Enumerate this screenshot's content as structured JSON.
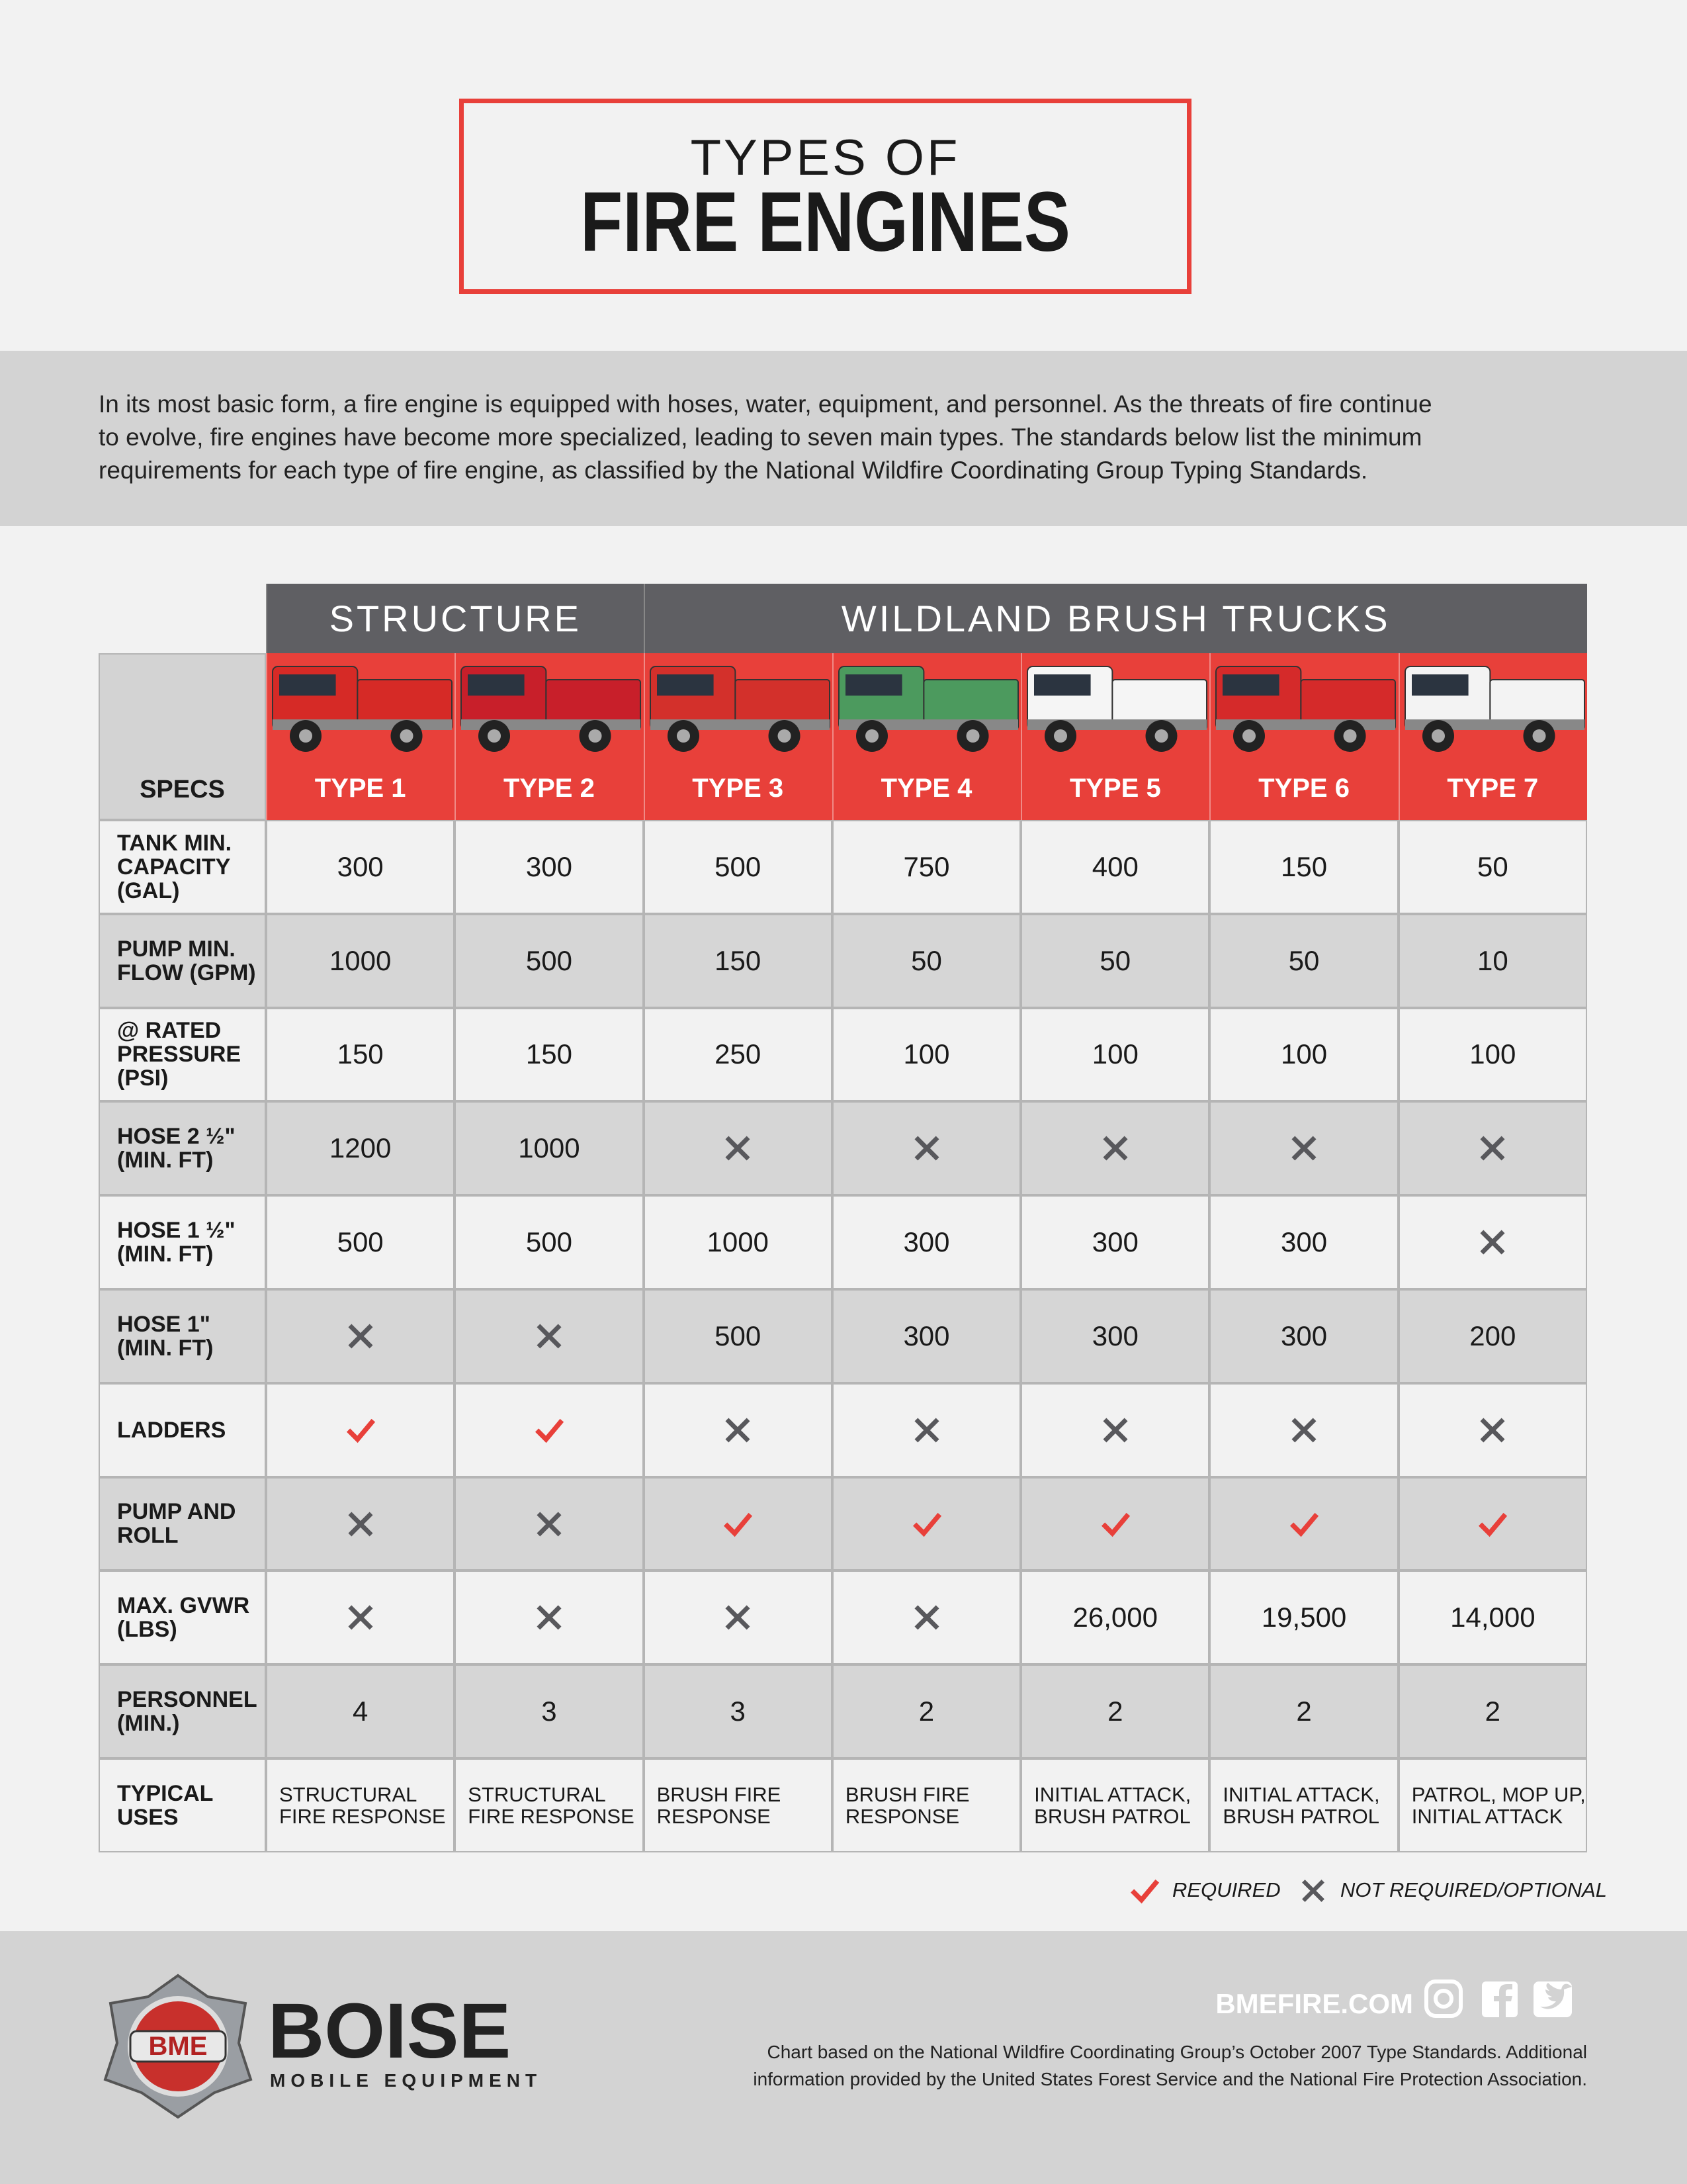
{
  "header": {
    "title_top": "TYPES OF",
    "title_main": "FIRE ENGINES"
  },
  "intro": [
    "In its most basic form, a fire engine is equipped with hoses, water, equipment, and personnel. As the threats of fire continue",
    "to evolve, fire engines have become more specialized, leading to seven main types. The standards below list the minimum",
    "requirements for each type of fire engine, as classified by the National Wildfire Coordinating Group Typing Standards."
  ],
  "table": {
    "groups": [
      {
        "label": "STRUCTURE",
        "types": [
          "TYPE 1",
          "TYPE 2"
        ]
      },
      {
        "label": "WILDLAND BRUSH TRUCKS",
        "types": [
          "TYPE 3",
          "TYPE 4",
          "TYPE 5",
          "TYPE 6",
          "TYPE 7"
        ]
      }
    ],
    "specs_label": "SPECS",
    "rows": [
      {
        "label": [
          "TANK MIN.",
          "CAPACITY",
          "(GAL)"
        ],
        "cells": [
          "300",
          "300",
          "500",
          "750",
          "400",
          "150",
          "50"
        ]
      },
      {
        "label": [
          "PUMP MIN.",
          "FLOW (GPM)"
        ],
        "cells": [
          "1000",
          "500",
          "150",
          "50",
          "50",
          "50",
          "10"
        ]
      },
      {
        "label": [
          "@ RATED",
          "PRESSURE",
          "(PSI)"
        ],
        "cells": [
          "150",
          "150",
          "250",
          "100",
          "100",
          "100",
          "100"
        ]
      },
      {
        "label": [
          "HOSE 2 ½\"",
          "(MIN. FT)"
        ],
        "cells": [
          "1200",
          "1000",
          false,
          false,
          false,
          false,
          false
        ]
      },
      {
        "label": [
          "HOSE 1 ½\"",
          "(MIN. FT)"
        ],
        "cells": [
          "500",
          "500",
          "1000",
          "300",
          "300",
          "300",
          false
        ]
      },
      {
        "label": [
          "HOSE 1\"",
          "(MIN. FT)"
        ],
        "cells": [
          false,
          false,
          "500",
          "300",
          "300",
          "300",
          "200"
        ]
      },
      {
        "label": [
          "LADDERS"
        ],
        "cells": [
          true,
          true,
          false,
          false,
          false,
          false,
          false
        ]
      },
      {
        "label": [
          "PUMP AND",
          "ROLL"
        ],
        "cells": [
          false,
          false,
          true,
          true,
          true,
          true,
          true
        ]
      },
      {
        "label": [
          "MAX. GVWR",
          "(LBS)"
        ],
        "cells": [
          false,
          false,
          false,
          false,
          "26,000",
          "19,500",
          "14,000"
        ]
      },
      {
        "label": [
          "PERSONNEL",
          "(MIN.)"
        ],
        "cells": [
          "4",
          "3",
          "3",
          "2",
          "2",
          "2",
          "2"
        ]
      },
      {
        "label": [
          "TYPICAL",
          "USES"
        ],
        "cells": [
          [
            "STRUCTURAL",
            "FIRE RESPONSE"
          ],
          [
            "STRUCTURAL",
            "FIRE RESPONSE"
          ],
          [
            "BRUSH FIRE",
            "RESPONSE"
          ],
          [
            "BRUSH FIRE",
            "RESPONSE"
          ],
          [
            "INITIAL ATTACK,",
            "BRUSH PATROL"
          ],
          [
            "INITIAL ATTACK,",
            "BRUSH PATROL"
          ],
          [
            "PATROL, MOP UP,",
            "INITIAL ATTACK"
          ]
        ]
      }
    ]
  },
  "legend": {
    "required": "REQUIRED",
    "not_required": "NOT REQUIRED/OPTIONAL"
  },
  "footer": {
    "badge": "BME",
    "brand": "BOISE",
    "brand_sub": "MOBILE EQUIPMENT",
    "website": "BMEFIRE.COM",
    "note": [
      "Chart based on the National Wildfire Coordinating Group’s October 2007 Type Standards. Additional",
      "information provided by the United States Forest Service and the National Fire Protection Association."
    ]
  }
}
